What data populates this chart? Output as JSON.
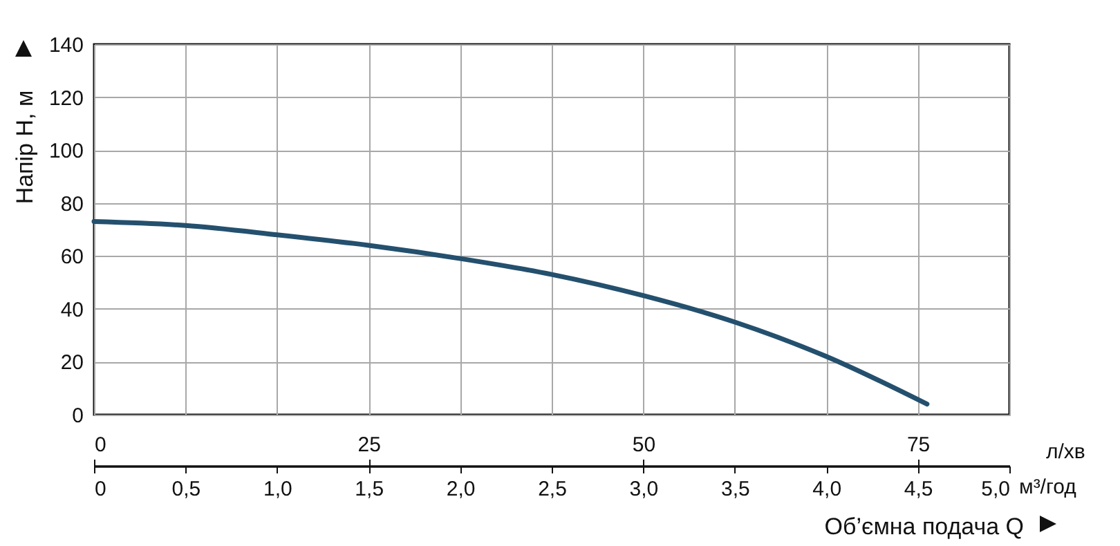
{
  "chart_data": {
    "type": "line",
    "xlabel": "Об’ємна подача Q",
    "ylabel": "Напір H, м",
    "x2label": "л/хв",
    "annotations": [
      "м³/год"
    ],
    "x": [
      0,
      0.5,
      1.0,
      1.5,
      2.0,
      2.5,
      3.0,
      3.5,
      4.0,
      4.55
    ],
    "series": [
      {
        "color": "#24506e",
        "values": [
          73,
          71.5,
          68,
          64,
          59,
          53,
          45,
          35,
          22,
          4
        ]
      }
    ],
    "xlim": [
      0,
      5
    ],
    "xticks": [
      0,
      {
        "value": 0.5,
        "label": "0,5"
      },
      {
        "value": 1,
        "label": "1,0"
      },
      {
        "value": 1.5,
        "label": "1,5"
      },
      {
        "value": 2,
        "label": "2,0"
      },
      {
        "value": 2.5,
        "label": "2,5"
      },
      {
        "value": 3,
        "label": "3,0"
      },
      {
        "value": 3.5,
        "label": "3,5"
      },
      {
        "value": 4,
        "label": "4,0"
      },
      {
        "value": 4.5,
        "label": "4,5"
      },
      {
        "value": 5,
        "label": "5,0"
      }
    ],
    "x2lim": [
      0,
      83.333
    ],
    "x2ticks": [
      0,
      25,
      50,
      75
    ],
    "ylim": [
      0,
      140
    ],
    "yticks": [
      0,
      20,
      40,
      60,
      80,
      100,
      120,
      140
    ],
    "grid": true,
    "marker": "none",
    "line_style": "solid"
  }
}
